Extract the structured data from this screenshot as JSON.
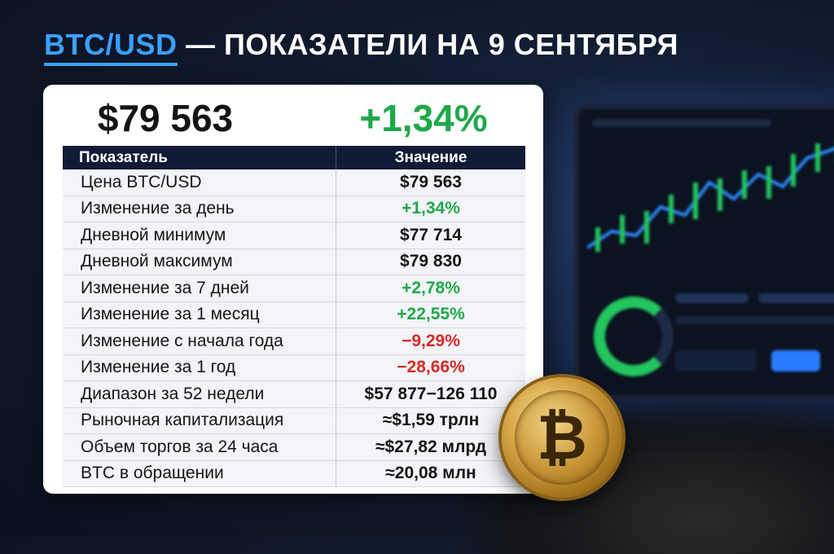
{
  "header": {
    "pair": "BTC/USD",
    "rest": " — ПОКАЗАТЕЛИ НА 9 СЕНТЯБРЯ"
  },
  "summary": {
    "price": "$79 563",
    "change": "+1,34%"
  },
  "table": {
    "headers": [
      "Показатель",
      "Значение"
    ],
    "rows": [
      {
        "name": "Цена BTC/USD",
        "value": "$79 563",
        "tone": "neutral"
      },
      {
        "name": "Изменение за день",
        "value": "+1,34%",
        "tone": "positive"
      },
      {
        "name": "Дневной минимум",
        "value": "$77 714",
        "tone": "neutral"
      },
      {
        "name": "Дневной максимум",
        "value": "$79 830",
        "tone": "neutral"
      },
      {
        "name": "Изменение за 7 дней",
        "value": "+2,78%",
        "tone": "positive"
      },
      {
        "name": "Изменение за 1 месяц",
        "value": "+22,55%",
        "tone": "positive"
      },
      {
        "name": "Изменение с начала года",
        "value": "−9,29%",
        "tone": "negative"
      },
      {
        "name": "Изменение за 1 год",
        "value": "−28,66%",
        "tone": "negative"
      },
      {
        "name": "Диапазон за 52 недели",
        "value": "$57 877−126 110",
        "tone": "neutral"
      },
      {
        "name": "Рыночная капитализация",
        "value": "≈$1,59 трлн",
        "tone": "neutral"
      },
      {
        "name": "Объем торгов за 24 часа",
        "value": "≈$27,82 млрд",
        "tone": "neutral"
      },
      {
        "name": "BTC в обращении",
        "value": "≈20,08 млн",
        "tone": "neutral"
      }
    ]
  },
  "coin": {
    "symbol": "₿",
    "icon": "bitcoin-coin-icon"
  },
  "colors": {
    "accent": "#3aa0ff",
    "positive": "#1fa84a",
    "negative": "#d42a2a",
    "header_bg": "#111b36"
  }
}
